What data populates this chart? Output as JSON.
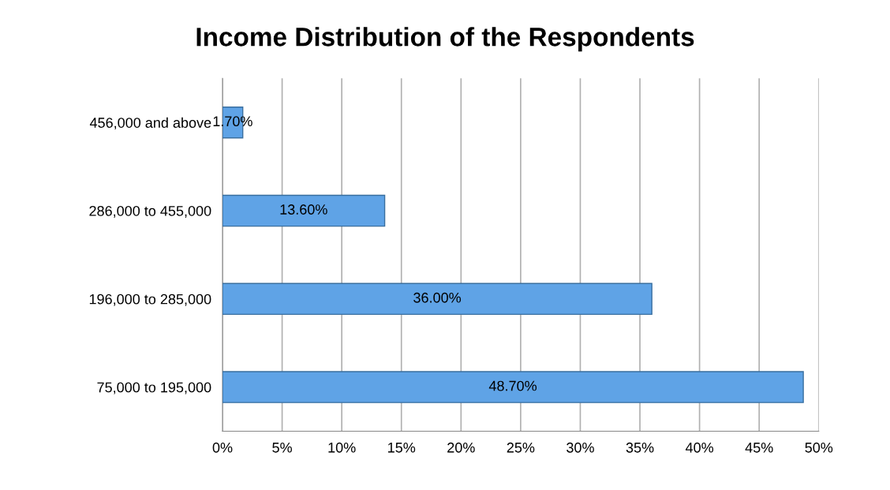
{
  "chart_data": {
    "type": "bar",
    "orientation": "horizontal",
    "title": "Income Distribution of the Respondents",
    "categories": [
      "456,000 and above",
      "286,000 to 455,000",
      "196,000 to 285,000",
      "75,000 to 195,000"
    ],
    "values": [
      1.7,
      13.6,
      36.0,
      48.7
    ],
    "value_labels": [
      "1.70%",
      "13.60%",
      "36.00%",
      "48.70%"
    ],
    "color": "#5fa3e6",
    "xlim": [
      0,
      50
    ],
    "xticks": [
      {
        "value": 0,
        "label": "0%"
      },
      {
        "value": 5,
        "label": "5%"
      },
      {
        "value": 10,
        "label": "10%"
      },
      {
        "value": 15,
        "label": "15%"
      },
      {
        "value": 20,
        "label": "20%"
      },
      {
        "value": 25,
        "label": "25%"
      },
      {
        "value": 30,
        "label": "30%"
      },
      {
        "value": 35,
        "label": "35%"
      },
      {
        "value": 40,
        "label": "40%"
      },
      {
        "value": 45,
        "label": "45%"
      },
      {
        "value": 50,
        "label": "50%"
      }
    ],
    "grid": "x"
  }
}
